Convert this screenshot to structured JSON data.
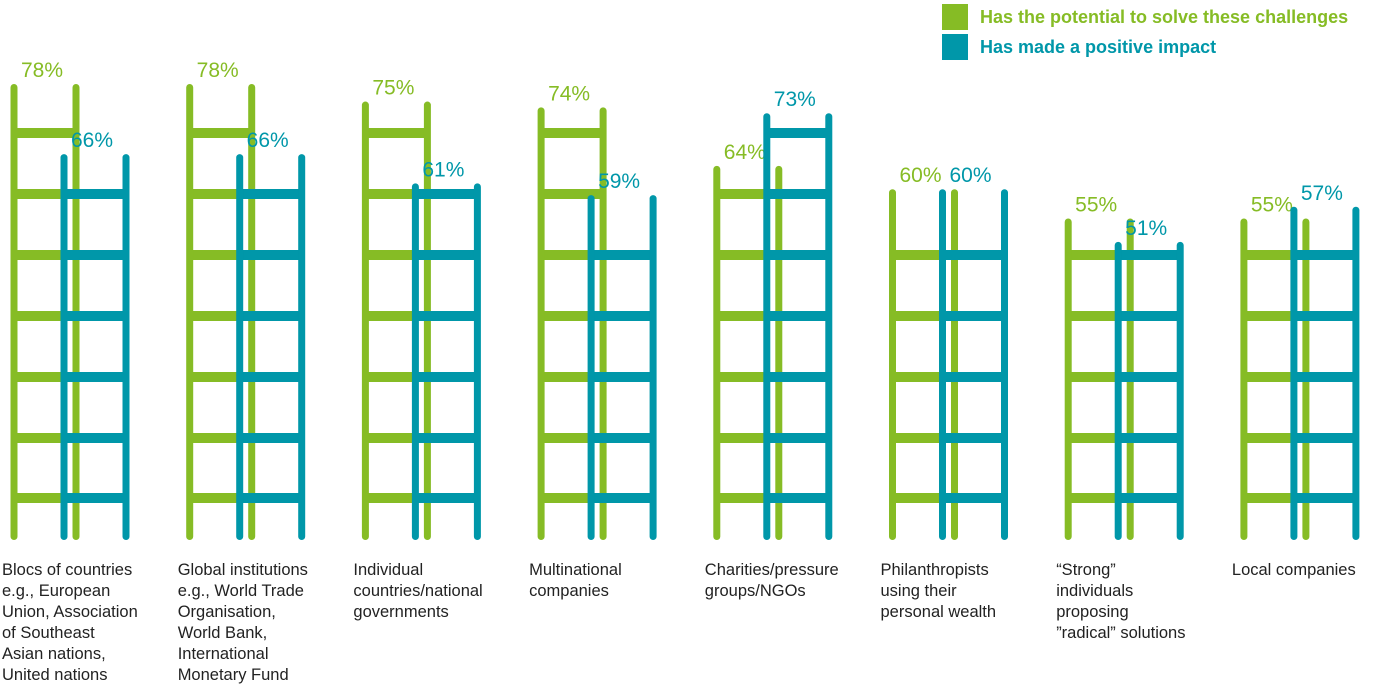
{
  "colors": {
    "potential": "#86bc25",
    "impact": "#0097a9",
    "text": "#222222"
  },
  "legend": [
    {
      "label": "Has the potential to solve these challenges",
      "color": "#86bc25"
    },
    {
      "label": "Has made a positive impact",
      "color": "#0097a9"
    }
  ],
  "chart_data": {
    "type": "bar",
    "title": "",
    "xlabel": "",
    "ylabel": "",
    "ylim": [
      0,
      100
    ],
    "categories": [
      "Blocs of countries e.g., European Union, Association of Southeast Asian nations, United nations",
      "Global institutions e.g., World Trade Organisation, World Bank, International Monetary Fund",
      "Individual countries/national governments",
      "Multinational companies",
      "Charities/pressure groups/NGOs",
      "Philanthropists using their personal wealth",
      "“Strong” individuals proposing ”radical” solutions",
      "Local companies"
    ],
    "category_lines": [
      "Blocs of countries\ne.g., European\nUnion, Association\nof Southeast\nAsian nations,\nUnited nations",
      "Global institutions\ne.g., World Trade\nOrganisation,\nWorld Bank,\nInternational\nMonetary Fund",
      "Individual\ncountries/national\ngovernments",
      "Multinational\ncompanies",
      "Charities/pressure\ngroups/NGOs",
      "Philanthropists\nusing their\npersonal wealth",
      "“Strong”\nindividuals\nproposing\n”radical” solutions",
      "Local companies"
    ],
    "series": [
      {
        "name": "Has the potential to solve these challenges",
        "values": [
          78,
          78,
          75,
          74,
          64,
          60,
          55,
          55
        ],
        "labels": [
          "78%",
          "78%",
          "75%",
          "74%",
          "64%",
          "60%",
          "55%",
          "55%"
        ]
      },
      {
        "name": "Has made a positive impact",
        "values": [
          66,
          66,
          61,
          59,
          73,
          60,
          51,
          57
        ],
        "labels": [
          "66%",
          "66%",
          "61%",
          "59%",
          "73%",
          "60%",
          "51%",
          "57%"
        ]
      }
    ],
    "legend_position": "top-right",
    "grid": false,
    "style": "ladder"
  }
}
